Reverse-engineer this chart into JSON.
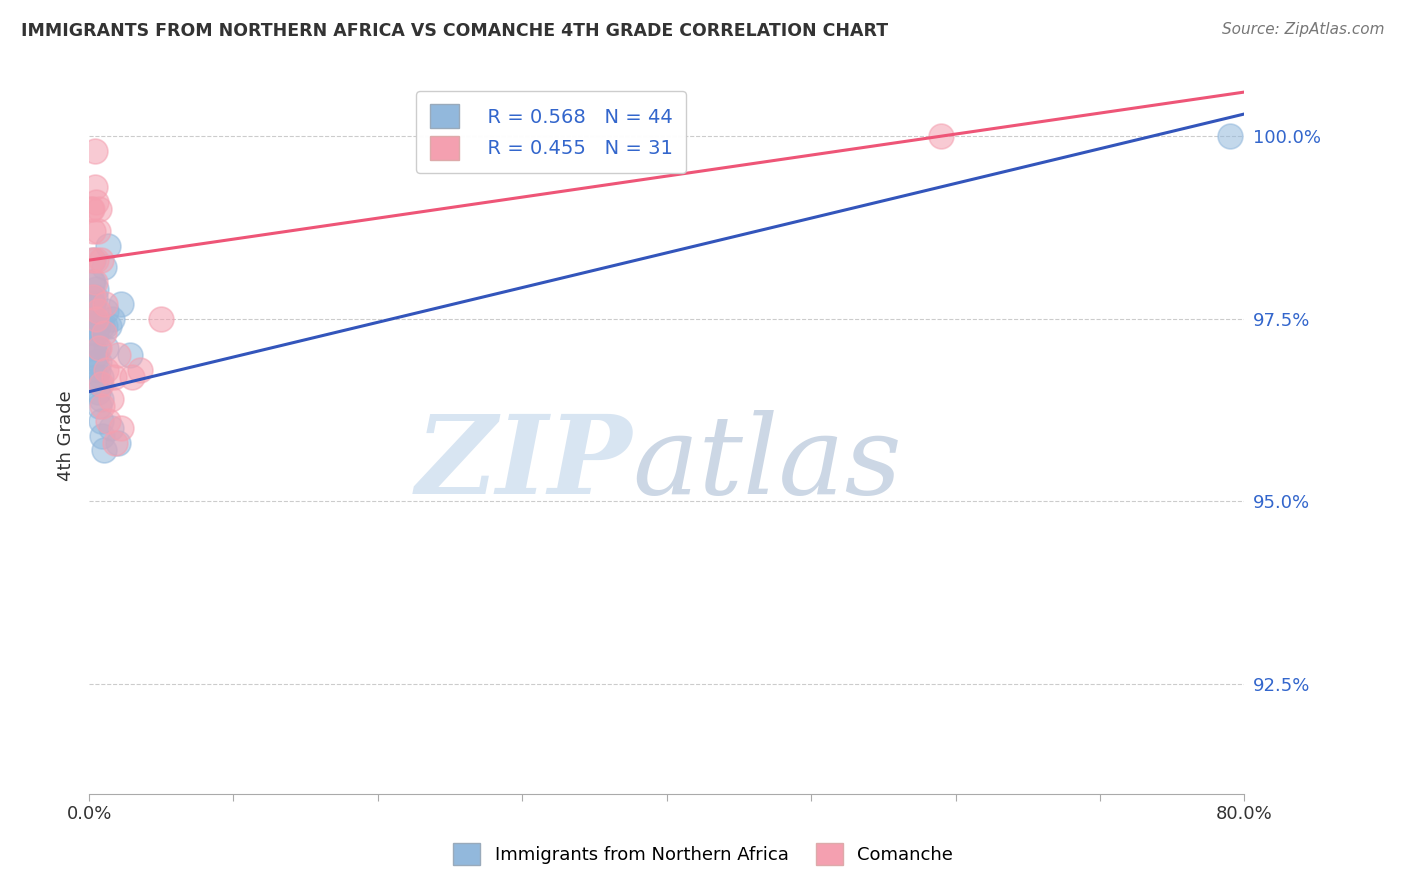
{
  "title": "IMMIGRANTS FROM NORTHERN AFRICA VS COMANCHE 4TH GRADE CORRELATION CHART",
  "source": "Source: ZipAtlas.com",
  "ylabel": "4th Grade",
  "yticks_labels": [
    "92.5%",
    "95.0%",
    "97.5%",
    "100.0%"
  ],
  "ytick_vals": [
    0.925,
    0.95,
    0.975,
    1.0
  ],
  "xlim": [
    0.0,
    0.8
  ],
  "ylim": [
    0.91,
    1.008
  ],
  "legend_R1": "R = 0.568",
  "legend_N1": "N = 44",
  "legend_R2": "R = 0.455",
  "legend_N2": "N = 31",
  "blue_color": "#92B8DC",
  "pink_color": "#F4A0B0",
  "blue_line_color": "#3355BB",
  "pink_line_color": "#EE5577",
  "blue_scatter_x": [
    0.001,
    0.001,
    0.002,
    0.002,
    0.002,
    0.003,
    0.003,
    0.003,
    0.003,
    0.003,
    0.004,
    0.004,
    0.004,
    0.004,
    0.005,
    0.005,
    0.005,
    0.005,
    0.005,
    0.006,
    0.006,
    0.006,
    0.006,
    0.007,
    0.007,
    0.007,
    0.008,
    0.008,
    0.008,
    0.009,
    0.009,
    0.01,
    0.01,
    0.011,
    0.012,
    0.012,
    0.013,
    0.014,
    0.015,
    0.016,
    0.02,
    0.022,
    0.028,
    0.79
  ],
  "blue_scatter_y": [
    0.975,
    0.978,
    0.974,
    0.977,
    0.98,
    0.971,
    0.974,
    0.977,
    0.98,
    0.983,
    0.969,
    0.972,
    0.975,
    0.978,
    0.967,
    0.97,
    0.973,
    0.976,
    0.979,
    0.965,
    0.968,
    0.971,
    0.974,
    0.963,
    0.966,
    0.969,
    0.961,
    0.964,
    0.967,
    0.959,
    0.974,
    0.957,
    0.982,
    0.974,
    0.971,
    0.976,
    0.985,
    0.974,
    0.96,
    0.975,
    0.958,
    0.977,
    0.97,
    1.0
  ],
  "pink_scatter_x": [
    0.001,
    0.002,
    0.002,
    0.003,
    0.003,
    0.004,
    0.004,
    0.004,
    0.005,
    0.005,
    0.005,
    0.006,
    0.006,
    0.007,
    0.007,
    0.008,
    0.008,
    0.009,
    0.01,
    0.011,
    0.012,
    0.013,
    0.015,
    0.017,
    0.018,
    0.02,
    0.022,
    0.03,
    0.035,
    0.05,
    0.59
  ],
  "pink_scatter_y": [
    0.99,
    0.983,
    0.99,
    0.978,
    0.987,
    0.98,
    0.993,
    0.998,
    0.975,
    0.983,
    0.991,
    0.976,
    0.987,
    0.971,
    0.99,
    0.966,
    0.983,
    0.963,
    0.973,
    0.977,
    0.968,
    0.961,
    0.964,
    0.967,
    0.958,
    0.97,
    0.96,
    0.967,
    0.968,
    0.975,
    1.0
  ],
  "blue_trendline_x": [
    0.0,
    0.8
  ],
  "blue_trendline_y": [
    0.965,
    1.003
  ],
  "pink_trendline_x": [
    0.0,
    0.8
  ],
  "pink_trendline_y": [
    0.983,
    1.006
  ],
  "grid_color": "#CCCCCC",
  "tick_color": "#3366CC",
  "title_color": "#333333"
}
